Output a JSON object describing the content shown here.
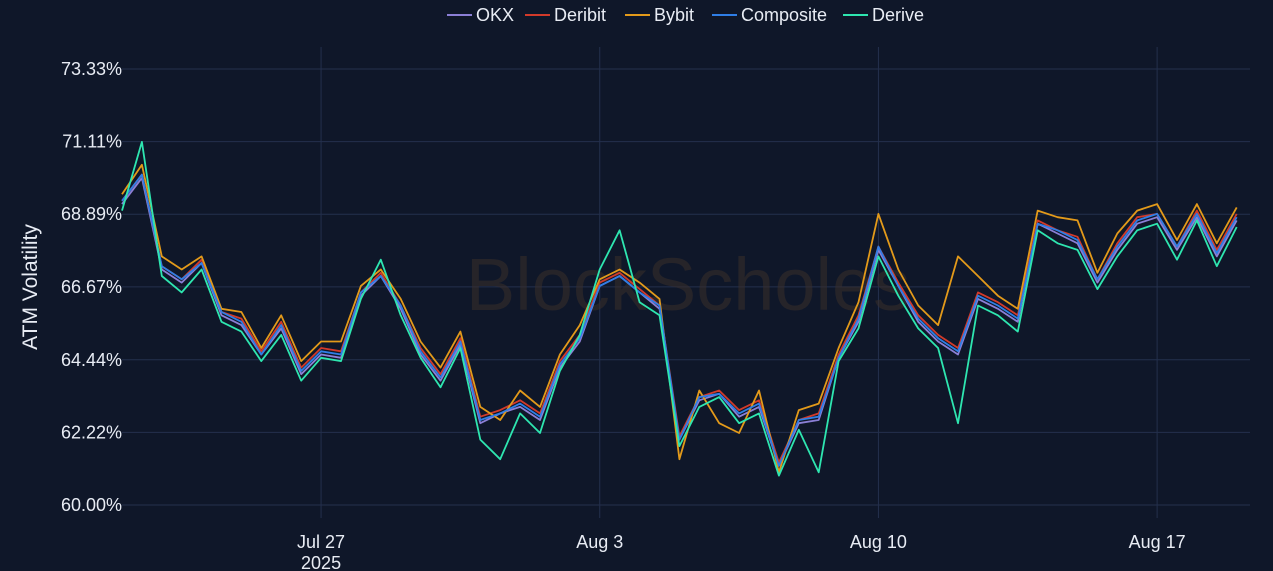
{
  "watermark": "BlockScholes",
  "colors": {
    "background": "#0f1729",
    "grid": "#24304d",
    "text": "#e8ecf4"
  },
  "chart_data": {
    "type": "line",
    "ylabel": "ATM Volatility",
    "ylim": [
      60.0,
      73.33
    ],
    "yticks": [
      "73.33%",
      "71.11%",
      "68.89%",
      "66.67%",
      "64.44%",
      "62.22%",
      "60.00%"
    ],
    "ytick_values": [
      73.33,
      71.11,
      68.89,
      66.67,
      64.44,
      62.22,
      60.0
    ],
    "xlim": [
      "2025-07-22",
      "2025-08-19 08:00"
    ],
    "xticks": [
      {
        "date": "2025-07-27",
        "label": "Jul 27",
        "sublabel": "2025"
      },
      {
        "date": "2025-08-03",
        "label": "Aug 3",
        "sublabel": ""
      },
      {
        "date": "2025-08-10",
        "label": "Aug 10",
        "sublabel": ""
      },
      {
        "date": "2025-08-17",
        "label": "Aug 17",
        "sublabel": ""
      }
    ],
    "legend_position": "top",
    "grid": true,
    "x": [
      "2025-07-22",
      "2025-07-22 12:00",
      "2025-07-23",
      "2025-07-23 12:00",
      "2025-07-24",
      "2025-07-24 12:00",
      "2025-07-25",
      "2025-07-25 12:00",
      "2025-07-26",
      "2025-07-26 12:00",
      "2025-07-27",
      "2025-07-27 12:00",
      "2025-07-28",
      "2025-07-28 12:00",
      "2025-07-29",
      "2025-07-29 12:00",
      "2025-07-30",
      "2025-07-30 12:00",
      "2025-07-31",
      "2025-07-31 12:00",
      "2025-08-01",
      "2025-08-01 12:00",
      "2025-08-02",
      "2025-08-02 12:00",
      "2025-08-03",
      "2025-08-03 12:00",
      "2025-08-04",
      "2025-08-04 12:00",
      "2025-08-05",
      "2025-08-05 12:00",
      "2025-08-06",
      "2025-08-06 12:00",
      "2025-08-07",
      "2025-08-07 12:00",
      "2025-08-08",
      "2025-08-08 12:00",
      "2025-08-09",
      "2025-08-09 12:00",
      "2025-08-10",
      "2025-08-10 12:00",
      "2025-08-11",
      "2025-08-11 12:00",
      "2025-08-12",
      "2025-08-12 12:00",
      "2025-08-13",
      "2025-08-13 12:00",
      "2025-08-14",
      "2025-08-14 12:00",
      "2025-08-15",
      "2025-08-15 12:00",
      "2025-08-16",
      "2025-08-16 12:00",
      "2025-08-17",
      "2025-08-17 12:00",
      "2025-08-18",
      "2025-08-18 12:00",
      "2025-08-19"
    ],
    "series": [
      {
        "name": "OKX",
        "color": "#8b7fd6",
        "values": [
          69.2,
          70.0,
          67.2,
          66.8,
          67.4,
          65.8,
          65.5,
          64.6,
          65.4,
          64.0,
          64.6,
          64.5,
          66.4,
          67.0,
          66.0,
          64.6,
          63.8,
          64.9,
          62.5,
          62.8,
          63.0,
          62.6,
          64.2,
          65.0,
          66.7,
          67.0,
          66.5,
          66.0,
          62.0,
          63.2,
          63.4,
          62.7,
          63.0,
          61.2,
          62.5,
          62.6,
          64.5,
          65.6,
          67.8,
          66.7,
          65.6,
          65.0,
          64.6,
          66.3,
          66.0,
          65.6,
          68.6,
          68.3,
          68.0,
          66.8,
          67.8,
          68.6,
          68.8,
          67.8,
          68.8,
          67.6,
          68.7
        ]
      },
      {
        "name": "Deribit",
        "color": "#d23a2a",
        "values": [
          69.3,
          70.1,
          67.3,
          66.9,
          67.5,
          65.9,
          65.7,
          64.7,
          65.6,
          64.2,
          64.8,
          64.7,
          66.5,
          67.1,
          66.1,
          64.8,
          64.0,
          65.1,
          62.7,
          62.9,
          63.2,
          62.8,
          64.4,
          65.2,
          66.8,
          67.1,
          66.6,
          66.1,
          62.1,
          63.3,
          63.5,
          62.9,
          63.2,
          61.3,
          62.6,
          62.8,
          64.6,
          65.8,
          67.9,
          66.8,
          65.8,
          65.2,
          64.8,
          66.5,
          66.2,
          65.8,
          68.7,
          68.4,
          68.2,
          66.9,
          68.0,
          68.8,
          68.9,
          67.9,
          69.0,
          67.8,
          68.9
        ]
      },
      {
        "name": "Bybit",
        "color": "#e39a1a",
        "values": [
          69.5,
          70.4,
          67.6,
          67.2,
          67.6,
          66.0,
          65.9,
          64.8,
          65.8,
          64.4,
          65.0,
          65.0,
          66.7,
          67.2,
          66.3,
          65.0,
          64.2,
          65.3,
          63.0,
          62.6,
          63.5,
          63.0,
          64.6,
          65.5,
          66.9,
          67.2,
          66.8,
          66.3,
          61.4,
          63.5,
          62.5,
          62.2,
          63.5,
          61.0,
          62.9,
          63.1,
          64.8,
          66.2,
          68.9,
          67.2,
          66.1,
          65.5,
          67.6,
          67.0,
          66.4,
          66.0,
          69.0,
          68.8,
          68.7,
          67.1,
          68.3,
          69.0,
          69.2,
          68.1,
          69.2,
          68.0,
          69.1
        ]
      },
      {
        "name": "Composite",
        "color": "#2f7ee6",
        "values": [
          69.3,
          70.1,
          67.3,
          66.9,
          67.4,
          65.9,
          65.6,
          64.6,
          65.5,
          64.1,
          64.7,
          64.6,
          66.5,
          67.0,
          66.1,
          64.7,
          63.9,
          65.0,
          62.6,
          62.8,
          63.1,
          62.7,
          64.3,
          65.1,
          66.7,
          67.0,
          66.5,
          66.1,
          62.0,
          63.3,
          63.4,
          62.8,
          63.1,
          61.2,
          62.6,
          62.7,
          64.5,
          65.7,
          67.9,
          66.7,
          65.7,
          65.1,
          64.7,
          66.4,
          66.1,
          65.7,
          68.6,
          68.4,
          68.1,
          66.9,
          67.9,
          68.7,
          68.9,
          67.9,
          68.9,
          67.7,
          68.8
        ]
      },
      {
        "name": "Derive",
        "color": "#2ee6b0",
        "values": [
          69.0,
          71.1,
          67.0,
          66.5,
          67.2,
          65.6,
          65.3,
          64.4,
          65.2,
          63.8,
          64.5,
          64.4,
          66.3,
          67.5,
          65.8,
          64.5,
          63.6,
          64.8,
          62.0,
          61.4,
          62.8,
          62.2,
          64.1,
          65.2,
          67.2,
          68.4,
          66.2,
          65.8,
          61.8,
          63.0,
          63.3,
          62.5,
          62.8,
          60.9,
          62.3,
          61.0,
          64.4,
          65.4,
          67.6,
          66.4,
          65.4,
          64.8,
          62.5,
          66.1,
          65.8,
          65.3,
          68.4,
          68.0,
          67.8,
          66.6,
          67.6,
          68.4,
          68.6,
          67.5,
          68.7,
          67.3,
          68.5
        ]
      }
    ]
  }
}
